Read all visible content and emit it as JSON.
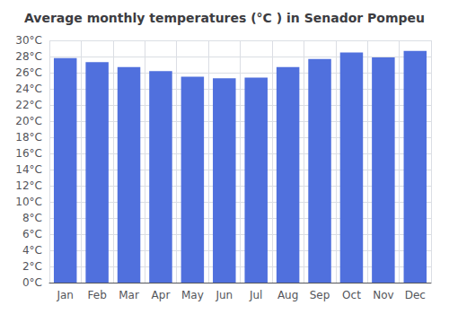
{
  "chart_data": {
    "type": "bar",
    "title": "Average monthly temperatures (°C ) in Senador Pompeu",
    "categories": [
      "Jan",
      "Feb",
      "Mar",
      "Apr",
      "May",
      "Jun",
      "Jul",
      "Aug",
      "Sep",
      "Oct",
      "Nov",
      "Dec"
    ],
    "values": [
      27.8,
      27.3,
      26.7,
      26.2,
      25.5,
      25.3,
      25.4,
      26.7,
      27.7,
      28.5,
      27.9,
      28.7
    ],
    "ylim": [
      0,
      30
    ],
    "yticks": [
      {
        "value": 0,
        "label": "0°C"
      },
      {
        "value": 2,
        "label": "2°C"
      },
      {
        "value": 4,
        "label": "4°C"
      },
      {
        "value": 6,
        "label": "6°C"
      },
      {
        "value": 8,
        "label": "8°C"
      },
      {
        "value": 10,
        "label": "10°C"
      },
      {
        "value": 12,
        "label": "12°C"
      },
      {
        "value": 14,
        "label": "14°C"
      },
      {
        "value": 16,
        "label": "16°C"
      },
      {
        "value": 18,
        "label": "18°C"
      },
      {
        "value": 20,
        "label": "20°C"
      },
      {
        "value": 22,
        "label": "22°C"
      },
      {
        "value": 24,
        "label": "24°C"
      },
      {
        "value": 26,
        "label": "26°C"
      },
      {
        "value": 28,
        "label": "28°C"
      },
      {
        "value": 30,
        "label": "30°C"
      }
    ],
    "grid": true
  }
}
